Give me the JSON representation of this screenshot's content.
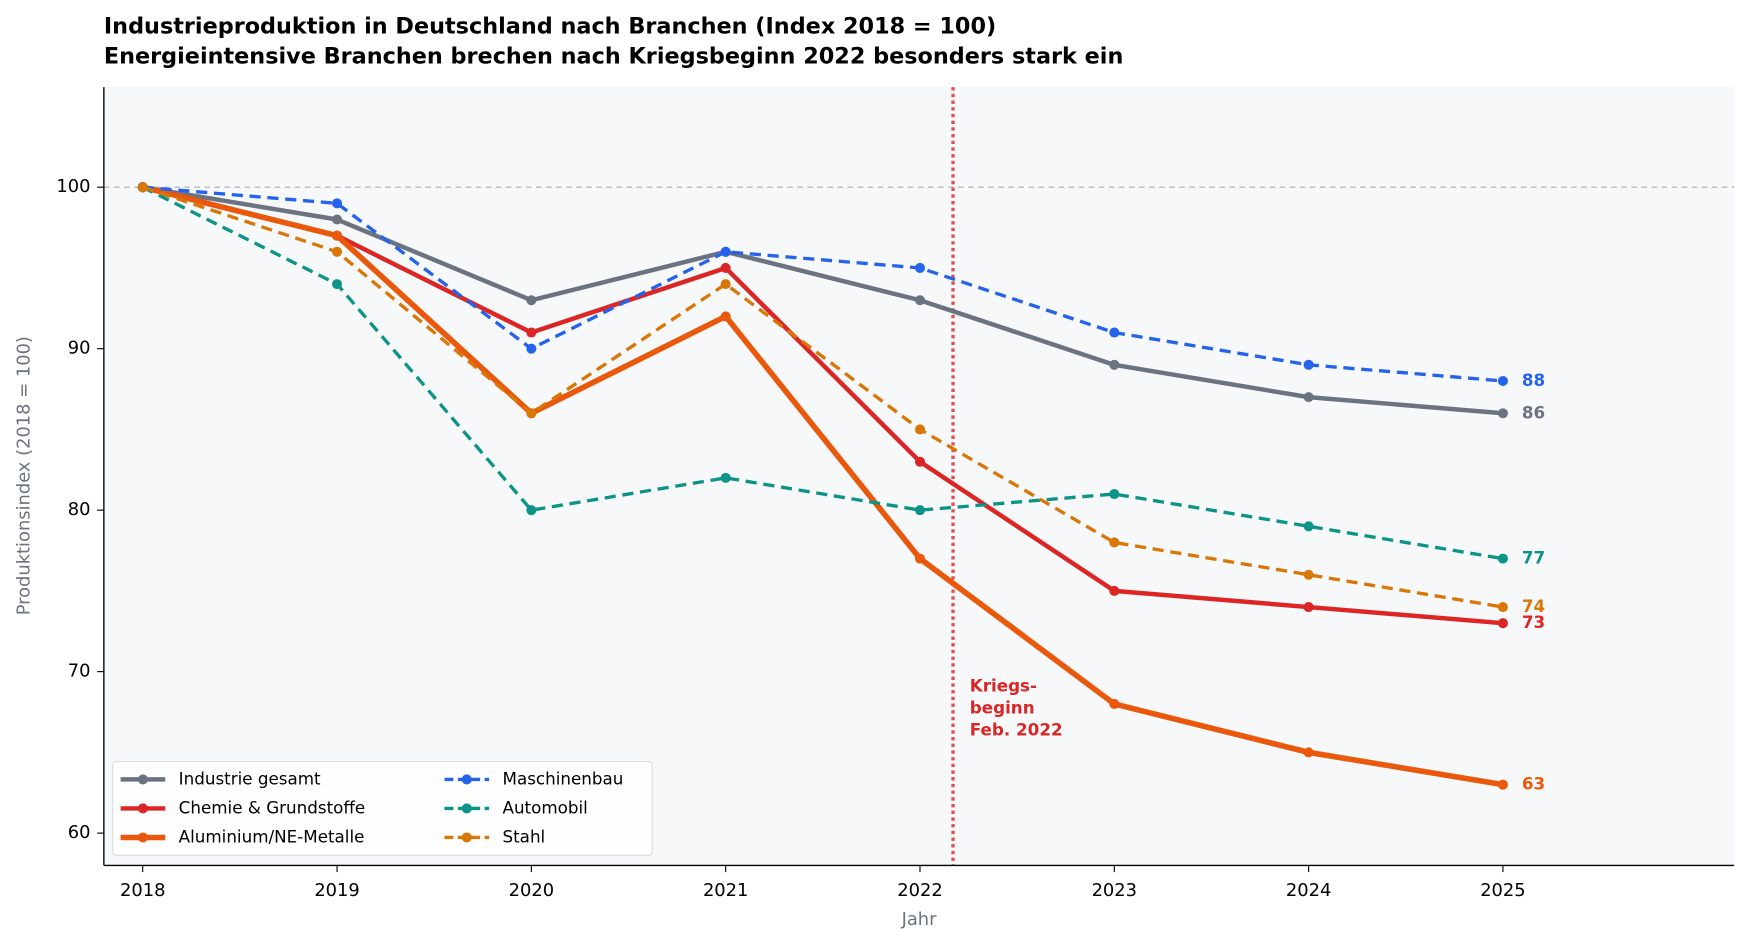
{
  "chart_data": {
    "type": "line",
    "title": "Industrieproduktion in Deutschland nach Branchen (Index 2018 = 100)",
    "subtitle": "Energieintensive Branchen brechen nach Kriegsbeginn 2022 besonders stark ein",
    "x_label": "Jahr",
    "y_label": "Produktionsindex (2018 = 100)",
    "x": [
      2018,
      2019,
      2020,
      2021,
      2022,
      2023,
      2024,
      2025
    ],
    "xlim": [
      2017.8,
      2026.19
    ],
    "xticks": [
      2018,
      2019,
      2020,
      2021,
      2022,
      2023,
      2024,
      2025
    ],
    "ylim": [
      58.0,
      106.2
    ],
    "yticks": [
      60,
      70,
      80,
      90,
      100
    ],
    "reference_line": 100,
    "event_line": 2022.17,
    "event_annotation": [
      "Kriegs-",
      "beginn",
      "Feb. 2022"
    ],
    "event_color": "#dc2626",
    "legend": "lower left",
    "series": [
      {
        "name": "Industrie gesamt",
        "color": "#6b7280",
        "dashed": false,
        "width": 4,
        "values": [
          100,
          98,
          93,
          96,
          93,
          89,
          87,
          86
        ]
      },
      {
        "name": "Chemie & Grundstoffe",
        "color": "#dc2626",
        "dashed": false,
        "width": 4,
        "values": [
          100,
          97,
          91,
          95,
          83,
          75,
          74,
          73
        ]
      },
      {
        "name": "Aluminium/NE-Metalle",
        "color": "#ea580c",
        "dashed": false,
        "width": 5,
        "values": [
          100,
          97,
          86,
          92,
          77,
          68,
          65,
          63
        ]
      },
      {
        "name": "Maschinenbau",
        "color": "#2563eb",
        "dashed": true,
        "width": 3,
        "values": [
          100,
          99,
          90,
          96,
          95,
          91,
          89,
          88
        ]
      },
      {
        "name": "Automobil",
        "color": "#0d9488",
        "dashed": true,
        "width": 3,
        "values": [
          100,
          94,
          80,
          82,
          80,
          81,
          79,
          77
        ]
      },
      {
        "name": "Stahl",
        "color": "#d97706",
        "dashed": true,
        "width": 3,
        "values": [
          100,
          96,
          86,
          94,
          85,
          78,
          76,
          74
        ]
      }
    ]
  }
}
